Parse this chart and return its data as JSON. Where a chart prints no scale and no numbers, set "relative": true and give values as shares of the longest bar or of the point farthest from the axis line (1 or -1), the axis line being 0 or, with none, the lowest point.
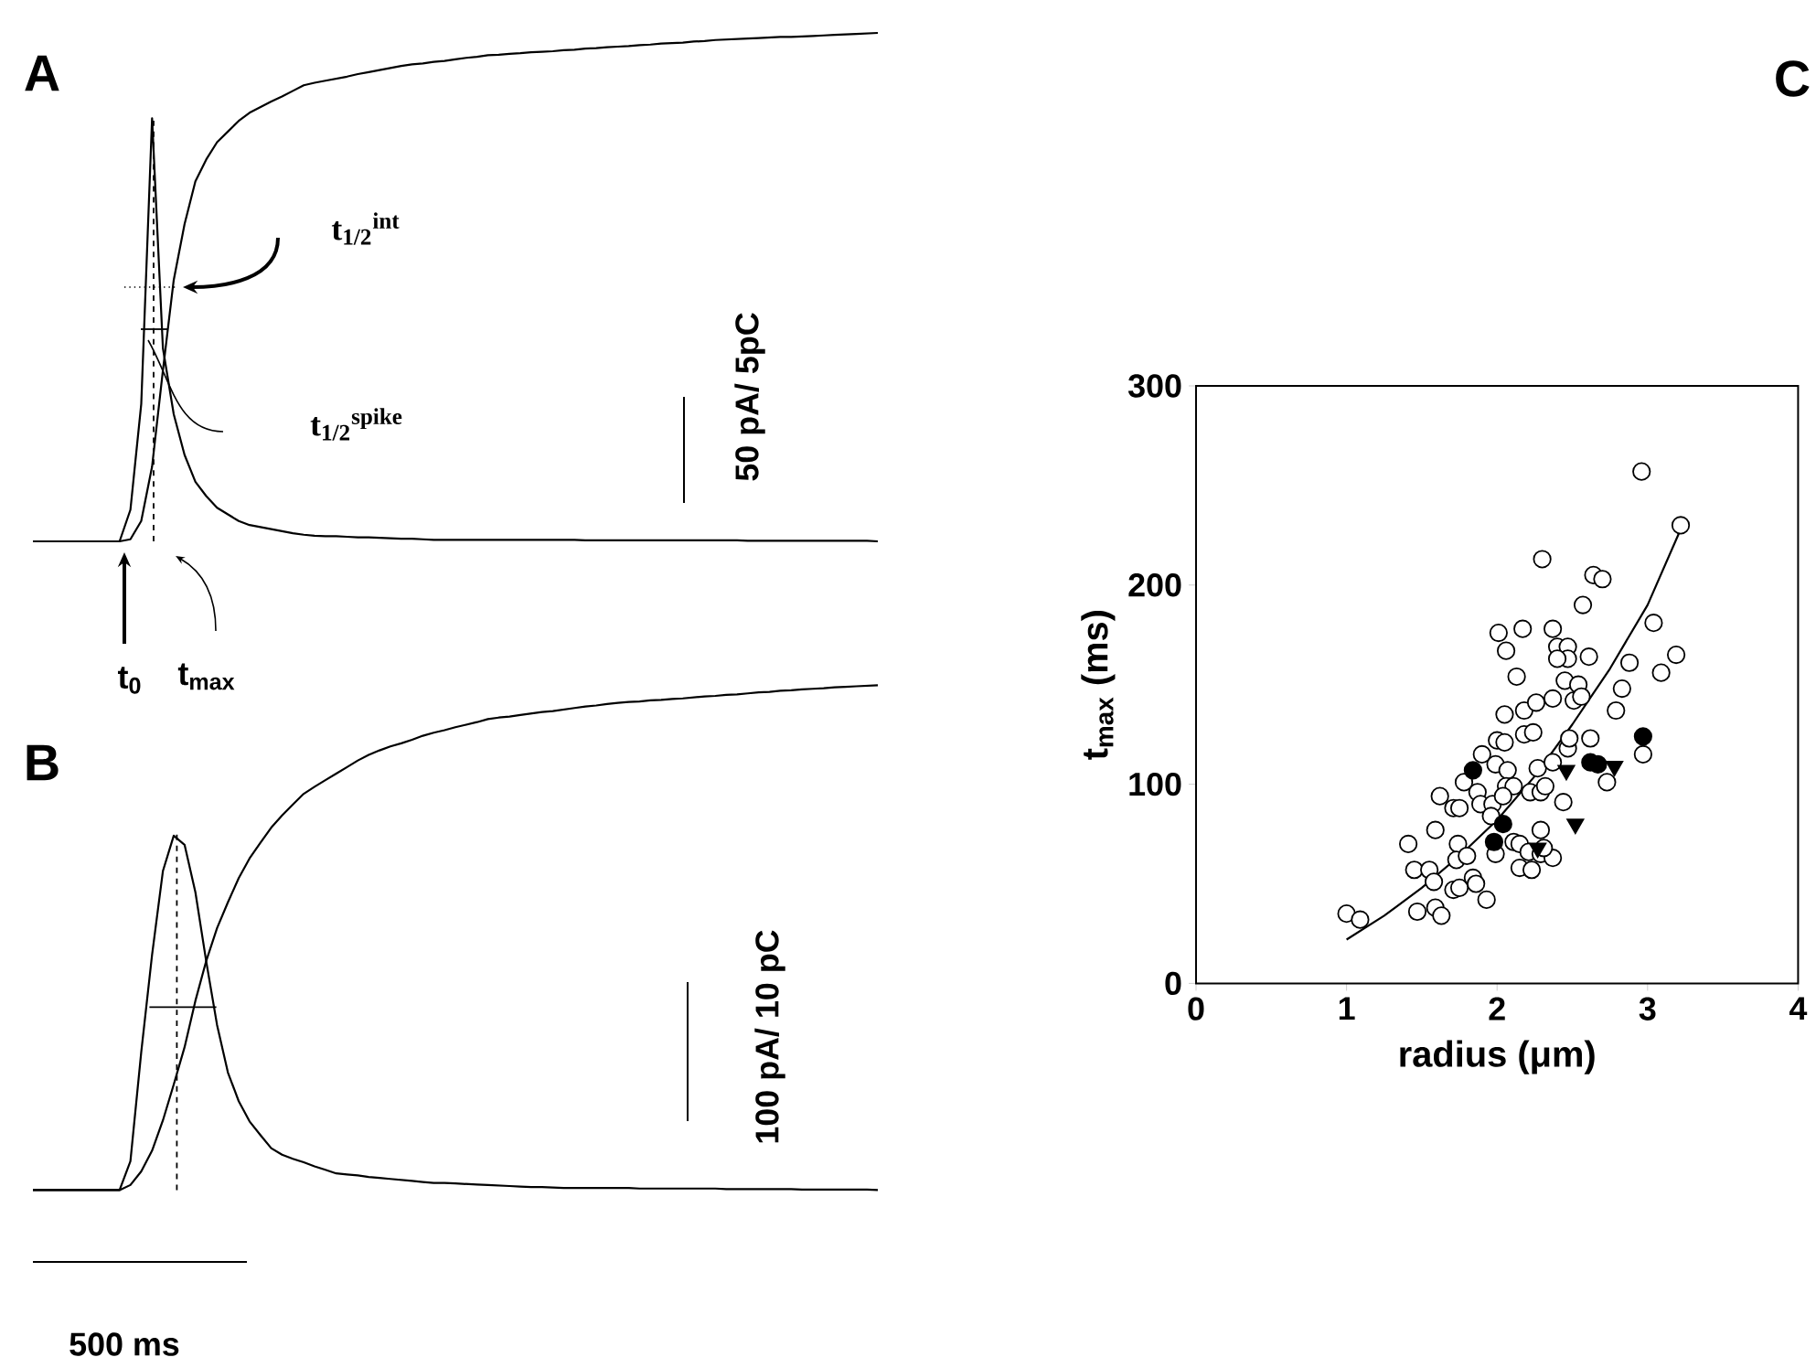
{
  "chart_data": [
    {
      "type": "line",
      "title": "A",
      "relative": true,
      "categories": [
        null,
        null,
        null,
        null,
        null,
        null,
        null,
        null,
        null,
        null,
        null,
        null,
        null,
        null,
        null,
        null,
        null,
        null,
        null,
        null,
        null,
        null,
        null,
        null,
        null,
        null,
        null,
        null,
        null,
        null,
        null,
        null,
        null,
        null,
        null,
        null,
        null,
        null,
        null,
        null,
        null,
        null,
        null,
        null,
        null,
        null,
        null,
        null,
        null,
        null,
        null,
        null,
        null,
        null,
        null,
        null,
        null,
        null,
        null,
        null,
        null,
        null,
        null,
        null,
        null,
        null,
        null,
        null,
        null,
        null,
        null,
        null,
        null,
        null,
        null,
        null,
        null,
        null,
        null
      ],
      "series": [
        {
          "color": "#000000",
          "values": [
            0,
            0,
            0,
            0,
            0,
            0,
            0,
            0,
            0,
            0.062,
            0.27,
            0.832,
            0.38,
            0.25,
            0.17,
            0.117,
            0.089,
            0.066,
            0.053,
            0.04,
            0.032,
            0.028,
            0.024,
            0.02,
            0.016,
            0.013,
            0.011,
            0.01,
            0.01,
            0.009,
            0.008,
            0.008,
            0.007,
            0.006,
            0.005,
            0.005,
            0.004,
            0.003,
            0.003,
            0.003,
            0.003,
            0.003,
            0.003,
            0.003,
            0.003,
            0.003,
            0.003,
            0.003,
            0.003,
            0.003,
            0.003,
            0.002,
            0.002,
            0.002,
            0.002,
            0.002,
            0.002,
            0.002,
            0.002,
            0.002,
            0.002,
            0.002,
            0.002,
            0.002,
            0.002,
            0.002,
            0.001,
            0.001,
            0.001,
            0.001,
            0.001,
            0.001,
            0.001,
            0.001,
            0.001,
            0.001,
            0.001,
            0.001,
            0
          ]
        },
        {
          "color": "#000000",
          "values": [
            0,
            0,
            0,
            0,
            0,
            0,
            0,
            0,
            0,
            0.004,
            0.04,
            0.147,
            0.336,
            0.514,
            0.624,
            0.708,
            0.751,
            0.785,
            0.806,
            0.827,
            0.843,
            0.854,
            0.865,
            0.875,
            0.886,
            0.897,
            0.902,
            0.906,
            0.91,
            0.914,
            0.919,
            0.923,
            0.927,
            0.931,
            0.935,
            0.938,
            0.94,
            0.943,
            0.945,
            0.948,
            0.951,
            0.953,
            0.956,
            0.957,
            0.959,
            0.96,
            0.962,
            0.963,
            0.964,
            0.966,
            0.967,
            0.969,
            0.97,
            0.972,
            0.973,
            0.974,
            0.976,
            0.977,
            0.979,
            0.98,
            0.981,
            0.983,
            0.984,
            0.986,
            0.987,
            0.988,
            0.989,
            0.99,
            0.991,
            0.992,
            0.992,
            0.993,
            0.994,
            0.995,
            0.996,
            0.997,
            0.998,
            0.999,
            1
          ]
        }
      ],
      "annotations": [
        "t$_{1/2}$$^{int}$",
        "t$_{1/2}$$^{spike}$",
        "t$_{0}$",
        "t$_{max}$",
        "50 pA/ 5pC"
      ]
    },
    {
      "type": "line",
      "title": "B",
      "relative": true,
      "categories": [
        null,
        null,
        null,
        null,
        null,
        null,
        null,
        null,
        null,
        null,
        null,
        null,
        null,
        null,
        null,
        null,
        null,
        null,
        null,
        null,
        null,
        null,
        null,
        null,
        null,
        null,
        null,
        null,
        null,
        null,
        null,
        null,
        null,
        null,
        null,
        null,
        null,
        null,
        null,
        null,
        null,
        null,
        null,
        null,
        null,
        null,
        null,
        null,
        null,
        null,
        null,
        null,
        null,
        null,
        null,
        null,
        null,
        null,
        null,
        null,
        null,
        null,
        null,
        null,
        null,
        null,
        null,
        null,
        null,
        null,
        null,
        null,
        null,
        null,
        null,
        null,
        null,
        null,
        null
      ],
      "series": [
        {
          "color": "#000000",
          "values": [
            0,
            0,
            0,
            0,
            0,
            0,
            0,
            0,
            0,
            0.057,
            0.273,
            0.466,
            0.632,
            0.702,
            0.684,
            0.59,
            0.453,
            0.327,
            0.233,
            0.176,
            0.136,
            0.109,
            0.083,
            0.07,
            0.062,
            0.055,
            0.047,
            0.04,
            0.033,
            0.031,
            0.029,
            0.026,
            0.024,
            0.022,
            0.02,
            0.018,
            0.016,
            0.014,
            0.014,
            0.013,
            0.012,
            0.011,
            0.01,
            0.009,
            0.008,
            0.007,
            0.006,
            0.006,
            0.005,
            0.004,
            0.004,
            0.004,
            0.004,
            0.004,
            0.004,
            0.004,
            0.003,
            0.003,
            0.003,
            0.003,
            0.003,
            0.003,
            0.003,
            0.003,
            0.002,
            0.002,
            0.002,
            0.002,
            0.002,
            0.002,
            0.002,
            0.001,
            0.001,
            0.001,
            0.001,
            0.001,
            0.001,
            0.001,
            0
          ]
        },
        {
          "color": "#000000",
          "values": [
            0,
            0,
            0,
            0,
            0,
            0,
            0,
            0,
            0,
            0.01,
            0.037,
            0.078,
            0.138,
            0.209,
            0.283,
            0.375,
            0.454,
            0.519,
            0.57,
            0.618,
            0.657,
            0.688,
            0.718,
            0.742,
            0.764,
            0.785,
            0.799,
            0.812,
            0.825,
            0.838,
            0.851,
            0.862,
            0.871,
            0.879,
            0.885,
            0.892,
            0.9,
            0.906,
            0.911,
            0.917,
            0.922,
            0.927,
            0.933,
            0.936,
            0.938,
            0.941,
            0.944,
            0.947,
            0.949,
            0.952,
            0.955,
            0.958,
            0.96,
            0.963,
            0.965,
            0.967,
            0.968,
            0.97,
            0.971,
            0.973,
            0.974,
            0.976,
            0.978,
            0.979,
            0.981,
            0.982,
            0.984,
            0.986,
            0.987,
            0.989,
            0.99,
            0.992,
            0.993,
            0.994,
            0.996,
            0.997,
            0.998,
            0.999,
            1
          ]
        }
      ],
      "annotations": [
        "100 pA/ 10 pC",
        "500 ms"
      ]
    },
    {
      "type": "scatter",
      "title": "C",
      "xlabel": "radius (μm)",
      "ylabel": "t$_{max}$ (ms)",
      "xlim": [
        0,
        4
      ],
      "ylim": [
        0,
        300
      ],
      "xticks": [
        0,
        1,
        2,
        3,
        4
      ],
      "yticks": [
        0,
        100,
        200,
        300
      ],
      "series": [
        {
          "marker": "circle",
          "color": "#ffffff",
          "x": [
            1.0,
            1.09,
            1.41,
            1.45,
            1.55,
            1.58,
            1.47,
            1.59,
            1.63,
            1.59,
            1.62,
            1.71,
            1.75,
            1.74,
            1.73,
            1.8,
            1.71,
            1.75,
            1.84,
            1.86,
            1.93,
            1.78,
            1.87,
            1.9,
            1.89,
            1.97,
            1.96,
            1.99,
            1.99,
            2.0,
            2.05,
            2.01,
            2.06,
            2.05,
            2.13,
            2.17,
            2.07,
            2.06,
            2.11,
            2.04,
            2.11,
            2.15,
            2.15,
            2.23,
            2.21,
            2.29,
            2.37,
            2.31,
            2.29,
            2.18,
            2.26,
            2.18,
            2.24,
            2.22,
            2.29,
            2.32,
            2.27,
            2.37,
            2.37,
            2.3,
            2.37,
            2.4,
            2.47,
            2.47,
            2.4,
            2.45,
            2.54,
            2.51,
            2.56,
            2.44,
            2.47,
            2.48,
            2.62,
            2.61,
            2.57,
            2.64,
            2.7,
            2.73,
            2.79,
            2.83,
            2.88,
            2.96,
            2.97,
            3.04,
            3.09,
            3.19,
            3.22
          ],
          "values": [
            35,
            32,
            70,
            57,
            57,
            51,
            36,
            38,
            34,
            77,
            94,
            88,
            88,
            70,
            62,
            64,
            47,
            48,
            53,
            50,
            42,
            101,
            96,
            115,
            90,
            90,
            84,
            65,
            110,
            122,
            121,
            176,
            167,
            135,
            154,
            178,
            107,
            99,
            99,
            94,
            71,
            70,
            58,
            57,
            66,
            65,
            63,
            68,
            77,
            137,
            141,
            125,
            126,
            96,
            96,
            99,
            108,
            111,
            143,
            213,
            178,
            169,
            169,
            163,
            163,
            152,
            150,
            142,
            144,
            91,
            118,
            123,
            123,
            164,
            190,
            205,
            203,
            101,
            137,
            148,
            161,
            257,
            115,
            181,
            156,
            165,
            230
          ]
        },
        {
          "marker": "circle",
          "color": "#000000",
          "x": [
            1.84,
            2.04,
            1.98,
            2.62,
            2.67,
            2.97
          ],
          "values": [
            107,
            80,
            71,
            111,
            110,
            124
          ]
        },
        {
          "marker": "triangle",
          "color": "#000000",
          "x": [
            2.46,
            2.52,
            2.78,
            2.27
          ],
          "values": [
            107,
            80,
            109,
            68
          ]
        },
        {
          "type": "line",
          "color": "#000000",
          "x": [
            1.0,
            1.25,
            1.5,
            1.75,
            2.0,
            2.25,
            2.5,
            2.75,
            3.0,
            3.22
          ],
          "values": [
            22,
            34,
            48,
            64,
            82,
            104,
            130,
            158,
            190,
            228
          ]
        }
      ]
    }
  ]
}
